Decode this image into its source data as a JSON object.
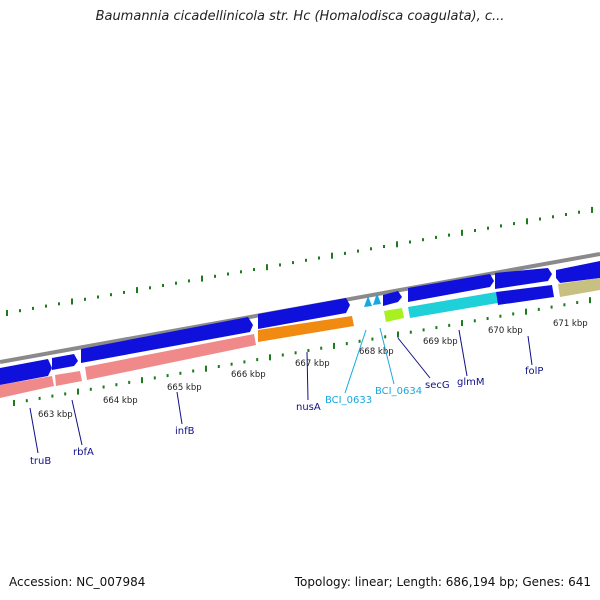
{
  "title": "Baumannia cicadellinicola str. Hc (Homalodisca coagulata), c...",
  "accession_label": "Accession: NC_007984",
  "summary_label": "Topology: linear; Length: 686,194 bp; Genes: 641",
  "colors": {
    "backbone": "#8a8a8a",
    "cds_forward": "#1010dd",
    "tick": "#1d7a1d",
    "label_dark": "#10108a",
    "label_light": "#18a8e0",
    "pink": "#f08a8a",
    "orange": "#f08a10",
    "lime": "#a8f020",
    "cyan": "#20d0d8",
    "khaki": "#c8c080"
  },
  "kbp_ticks": [
    "663 kbp",
    "664 kbp",
    "665 kbp",
    "666 kbp",
    "667 kbp",
    "668 kbp",
    "669 kbp",
    "670 kbp",
    "671 kbp"
  ],
  "gene_labels": [
    {
      "name": "truB",
      "color": "dark"
    },
    {
      "name": "rbfA",
      "color": "dark"
    },
    {
      "name": "infB",
      "color": "dark"
    },
    {
      "name": "nusA",
      "color": "dark"
    },
    {
      "name": "BCI_0633",
      "color": "light"
    },
    {
      "name": "BCI_0634",
      "color": "light"
    },
    {
      "name": "secG",
      "color": "dark"
    },
    {
      "name": "glmM",
      "color": "dark"
    },
    {
      "name": "folP",
      "color": "dark"
    }
  ]
}
